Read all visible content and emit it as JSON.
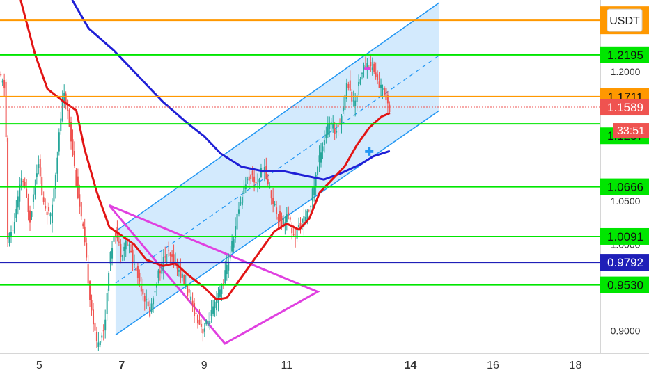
{
  "chart_data": {
    "type": "line",
    "title": "",
    "currency_badge": "USDT",
    "countdown": "33:51",
    "x_ticks": [
      {
        "label": "5",
        "day": 5,
        "bold": false
      },
      {
        "label": "7",
        "day": 7,
        "bold": true
      },
      {
        "label": "9",
        "day": 9,
        "bold": false
      },
      {
        "label": "11",
        "day": 11,
        "bold": false
      },
      {
        "label": "14",
        "day": 14,
        "bold": true
      },
      {
        "label": "16",
        "day": 16,
        "bold": false
      },
      {
        "label": "18",
        "day": 18,
        "bold": false
      }
    ],
    "y_ticks": [
      {
        "label": "1.2000",
        "value": 1.2
      },
      {
        "label": "1.0500",
        "value": 1.05
      },
      {
        "label": "1.0000",
        "value": 1.0
      },
      {
        "label": "0.9000",
        "value": 0.9
      }
    ],
    "xlim": [
      4.05,
      18.6
    ],
    "ylim": [
      0.885,
      1.283
    ],
    "grid": false,
    "horizontal_levels": [
      {
        "label": "",
        "value": 1.2595,
        "color": "#ff9800",
        "badge": false
      },
      {
        "label": "1.2195",
        "value": 1.2195,
        "color": "#00e600",
        "badge": true
      },
      {
        "label": "1.1711",
        "value": 1.1711,
        "color": "#ff9800",
        "badge": true
      },
      {
        "label": "1.1589",
        "value": 1.1589,
        "color": "#ef5350",
        "badge": true,
        "dotted": true
      },
      {
        "label": "",
        "value": 1.1395,
        "color": "#00e600",
        "badge": false
      },
      {
        "label": "1.1257",
        "value": 1.1257,
        "color": "#00e600",
        "badge": true,
        "line": false
      },
      {
        "label": "1.0666",
        "value": 1.0666,
        "color": "#00e600",
        "badge": true
      },
      {
        "label": "1.0091",
        "value": 1.0091,
        "color": "#00e600",
        "badge": true
      },
      {
        "label": "0.9792",
        "value": 0.9792,
        "color": "#1f1fb8",
        "badge": true
      },
      {
        "label": "0.9530",
        "value": 0.953,
        "color": "#00e600",
        "badge": true
      }
    ],
    "price_path": [
      [
        4.05,
        1.195
      ],
      [
        4.2,
        1.18
      ],
      [
        4.25,
        1.005
      ],
      [
        4.4,
        1.02
      ],
      [
        4.6,
        1.08
      ],
      [
        4.8,
        1.03
      ],
      [
        5.0,
        1.1
      ],
      [
        5.1,
        1.05
      ],
      [
        5.3,
        1.03
      ],
      [
        5.45,
        1.1
      ],
      [
        5.6,
        1.175
      ],
      [
        5.7,
        1.16
      ],
      [
        5.8,
        1.12
      ],
      [
        5.95,
        1.06
      ],
      [
        6.1,
        1.01
      ],
      [
        6.25,
        0.94
      ],
      [
        6.4,
        0.885
      ],
      [
        6.6,
        0.9
      ],
      [
        6.7,
        0.97
      ],
      [
        6.85,
        1.02
      ],
      [
        7.0,
        0.99
      ],
      [
        7.15,
        1.005
      ],
      [
        7.3,
        0.98
      ],
      [
        7.5,
        0.95
      ],
      [
        7.7,
        0.92
      ],
      [
        7.9,
        0.965
      ],
      [
        8.1,
        0.99
      ],
      [
        8.3,
        0.98
      ],
      [
        8.5,
        0.96
      ],
      [
        8.65,
        0.94
      ],
      [
        8.8,
        0.92
      ],
      [
        9.0,
        0.9
      ],
      [
        9.15,
        0.915
      ],
      [
        9.3,
        0.93
      ],
      [
        9.5,
        0.96
      ],
      [
        9.7,
        1.0
      ],
      [
        9.85,
        1.04
      ],
      [
        10.0,
        1.07
      ],
      [
        10.15,
        1.08
      ],
      [
        10.3,
        1.07
      ],
      [
        10.45,
        1.09
      ],
      [
        10.6,
        1.065
      ],
      [
        10.75,
        1.04
      ],
      [
        10.9,
        1.025
      ],
      [
        11.05,
        1.035
      ],
      [
        11.2,
        1.005
      ],
      [
        11.35,
        1.025
      ],
      [
        11.5,
        1.03
      ],
      [
        11.65,
        1.06
      ],
      [
        11.85,
        1.11
      ],
      [
        12.05,
        1.14
      ],
      [
        12.2,
        1.13
      ],
      [
        12.35,
        1.15
      ],
      [
        12.5,
        1.19
      ],
      [
        12.65,
        1.16
      ],
      [
        12.8,
        1.195
      ],
      [
        12.95,
        1.21
      ],
      [
        13.1,
        1.205
      ],
      [
        13.25,
        1.185
      ],
      [
        13.4,
        1.175
      ],
      [
        13.5,
        1.1589
      ]
    ],
    "series": [
      {
        "name": "",
        "color": "#1f1fd6",
        "points": [
          [
            5.8,
            1.283
          ],
          [
            6.2,
            1.25
          ],
          [
            6.8,
            1.225
          ],
          [
            7.4,
            1.195
          ],
          [
            8.0,
            1.165
          ],
          [
            8.6,
            1.14
          ],
          [
            9.0,
            1.125
          ],
          [
            9.4,
            1.105
          ],
          [
            9.9,
            1.09
          ],
          [
            10.4,
            1.085
          ],
          [
            10.9,
            1.085
          ],
          [
            11.4,
            1.08
          ],
          [
            11.9,
            1.075
          ],
          [
            12.3,
            1.082
          ],
          [
            12.8,
            1.093
          ],
          [
            13.1,
            1.102
          ],
          [
            13.5,
            1.108
          ]
        ]
      },
      {
        "name": "",
        "color": "#e21414",
        "points": [
          [
            4.55,
            1.283
          ],
          [
            4.9,
            1.22
          ],
          [
            5.2,
            1.18
          ],
          [
            5.6,
            1.165
          ],
          [
            5.9,
            1.155
          ],
          [
            6.1,
            1.11
          ],
          [
            6.4,
            1.06
          ],
          [
            6.7,
            1.02
          ],
          [
            7.0,
            1.01
          ],
          [
            7.3,
            1.0
          ],
          [
            7.6,
            0.982
          ],
          [
            8.0,
            0.975
          ],
          [
            8.3,
            0.978
          ],
          [
            8.6,
            0.965
          ],
          [
            9.0,
            0.95
          ],
          [
            9.3,
            0.936
          ],
          [
            9.55,
            0.938
          ],
          [
            9.8,
            0.955
          ],
          [
            10.1,
            0.975
          ],
          [
            10.4,
            0.995
          ],
          [
            10.7,
            1.015
          ],
          [
            11.0,
            1.024
          ],
          [
            11.3,
            1.017
          ],
          [
            11.55,
            1.03
          ],
          [
            11.8,
            1.06
          ],
          [
            12.1,
            1.075
          ],
          [
            12.4,
            1.09
          ],
          [
            12.7,
            1.115
          ],
          [
            13.0,
            1.135
          ],
          [
            13.3,
            1.148
          ],
          [
            13.5,
            1.152
          ]
        ]
      }
    ],
    "channel": {
      "color": "#2196f3",
      "lower": [
        [
          6.85,
          0.895
        ],
        [
          14.7,
          1.155
        ]
      ],
      "upper": [
        [
          6.85,
          1.015
        ],
        [
          14.7,
          1.28
        ]
      ],
      "mid": [
        [
          6.85,
          0.955
        ],
        [
          14.7,
          1.219
        ]
      ]
    },
    "triangle": {
      "color": "#e040e0",
      "points": [
        [
          6.7,
          1.045
        ],
        [
          11.75,
          0.945
        ],
        [
          9.5,
          0.885
        ]
      ]
    },
    "markers": [
      {
        "name": "cross-marker",
        "x": 13.0,
        "y": 1.1075,
        "color": "#2196f3"
      },
      {
        "name": "magenta-tick",
        "x": 12.95,
        "y": 1.2035,
        "color": "#e040e0"
      }
    ]
  }
}
